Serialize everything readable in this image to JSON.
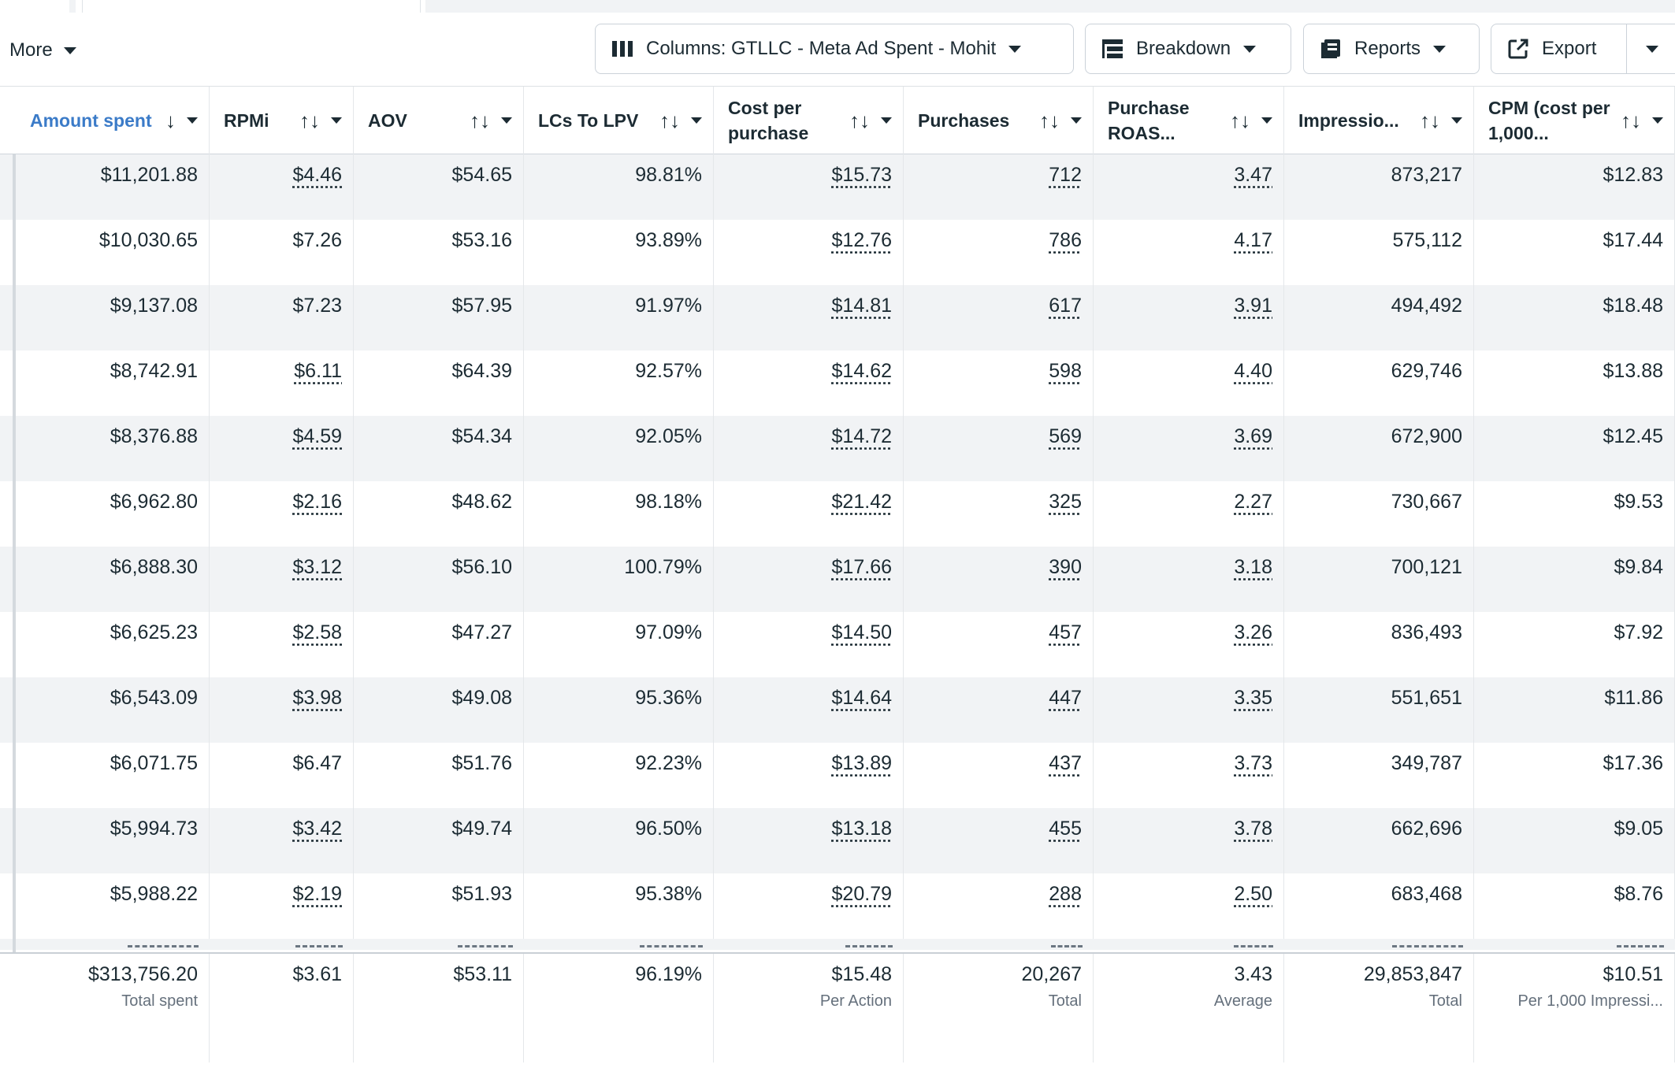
{
  "toolbar": {
    "more_label": "More",
    "columns_label": "Columns: GTLLC - Meta Ad Spent - Mohit",
    "breakdown_label": "Breakdown",
    "reports_label": "Reports",
    "export_label": "Export",
    "icons": {
      "columns": "columns-icon",
      "breakdown": "breakdown-icon",
      "reports": "reports-icon",
      "export": "export-icon"
    }
  },
  "table": {
    "headers": [
      {
        "label": "Amount spent",
        "sort": "↓",
        "active": true
      },
      {
        "label": "RPMi",
        "sort": "↑↓",
        "active": false
      },
      {
        "label": "AOV",
        "sort": "↑↓",
        "active": false
      },
      {
        "label": "LCs To LPV",
        "sort": "↑↓",
        "active": false
      },
      {
        "label": "Cost per purchase",
        "sort": "↑↓",
        "active": false
      },
      {
        "label": "Purchases",
        "sort": "↑↓",
        "active": false
      },
      {
        "label": "Purchase ROAS...",
        "sort": "↑↓",
        "active": false
      },
      {
        "label": "Impressio...",
        "sort": "↑↓",
        "active": false
      },
      {
        "label": "CPM (cost per 1,000...",
        "sort": "↑↓",
        "active": false
      }
    ],
    "rows": [
      [
        "$11,201.88",
        "$4.46",
        "$54.65",
        "98.81%",
        "$15.73",
        "712",
        "3.47",
        "873,217",
        "$12.83"
      ],
      [
        "$10,030.65",
        "$7.26",
        "$53.16",
        "93.89%",
        "$12.76",
        "786",
        "4.17",
        "575,112",
        "$17.44"
      ],
      [
        "$9,137.08",
        "$7.23",
        "$57.95",
        "91.97%",
        "$14.81",
        "617",
        "3.91",
        "494,492",
        "$18.48"
      ],
      [
        "$8,742.91",
        "$6.11",
        "$64.39",
        "92.57%",
        "$14.62",
        "598",
        "4.40",
        "629,746",
        "$13.88"
      ],
      [
        "$8,376.88",
        "$4.59",
        "$54.34",
        "92.05%",
        "$14.72",
        "569",
        "3.69",
        "672,900",
        "$12.45"
      ],
      [
        "$6,962.80",
        "$2.16",
        "$48.62",
        "98.18%",
        "$21.42",
        "325",
        "2.27",
        "730,667",
        "$9.53"
      ],
      [
        "$6,888.30",
        "$3.12",
        "$56.10",
        "100.79%",
        "$17.66",
        "390",
        "3.18",
        "700,121",
        "$9.84"
      ],
      [
        "$6,625.23",
        "$2.58",
        "$47.27",
        "97.09%",
        "$14.50",
        "457",
        "3.26",
        "836,493",
        "$7.92"
      ],
      [
        "$6,543.09",
        "$3.98",
        "$49.08",
        "95.36%",
        "$14.64",
        "447",
        "3.35",
        "551,651",
        "$11.86"
      ],
      [
        "$6,071.75",
        "$6.47",
        "$51.76",
        "92.23%",
        "$13.89",
        "437",
        "3.73",
        "349,787",
        "$17.36"
      ],
      [
        "$5,994.73",
        "$3.42",
        "$49.74",
        "96.50%",
        "$13.18",
        "455",
        "3.78",
        "662,696",
        "$9.05"
      ],
      [
        "$5,988.22",
        "$2.19",
        "$51.93",
        "95.38%",
        "$20.79",
        "288",
        "2.50",
        "683,468",
        "$8.76"
      ]
    ],
    "linked_cells": [
      [
        false,
        true,
        false,
        false,
        true,
        true,
        true,
        false,
        false
      ],
      [
        false,
        false,
        false,
        false,
        true,
        true,
        true,
        false,
        false
      ],
      [
        false,
        false,
        false,
        false,
        true,
        true,
        true,
        false,
        false
      ],
      [
        false,
        true,
        false,
        false,
        true,
        true,
        true,
        false,
        false
      ],
      [
        false,
        true,
        false,
        false,
        true,
        true,
        true,
        false,
        false
      ],
      [
        false,
        true,
        false,
        false,
        true,
        true,
        true,
        false,
        false
      ],
      [
        false,
        true,
        false,
        false,
        true,
        true,
        true,
        false,
        false
      ],
      [
        false,
        true,
        false,
        false,
        true,
        true,
        true,
        false,
        false
      ],
      [
        false,
        true,
        false,
        false,
        true,
        true,
        true,
        false,
        false
      ],
      [
        false,
        false,
        false,
        false,
        true,
        true,
        true,
        false,
        false
      ],
      [
        false,
        true,
        false,
        false,
        true,
        true,
        true,
        false,
        false
      ],
      [
        false,
        true,
        false,
        false,
        true,
        true,
        true,
        false,
        false
      ]
    ],
    "footer": [
      {
        "value": "$313,756.20",
        "sub": "Total spent"
      },
      {
        "value": "$3.61",
        "sub": ""
      },
      {
        "value": "$53.11",
        "sub": ""
      },
      {
        "value": "96.19%",
        "sub": ""
      },
      {
        "value": "$15.48",
        "sub": "Per Action"
      },
      {
        "value": "20,267",
        "sub": "Total"
      },
      {
        "value": "3.43",
        "sub": "Average"
      },
      {
        "value": "29,853,847",
        "sub": "Total"
      },
      {
        "value": "$10.51",
        "sub": "Per 1,000 Impressi..."
      }
    ]
  }
}
